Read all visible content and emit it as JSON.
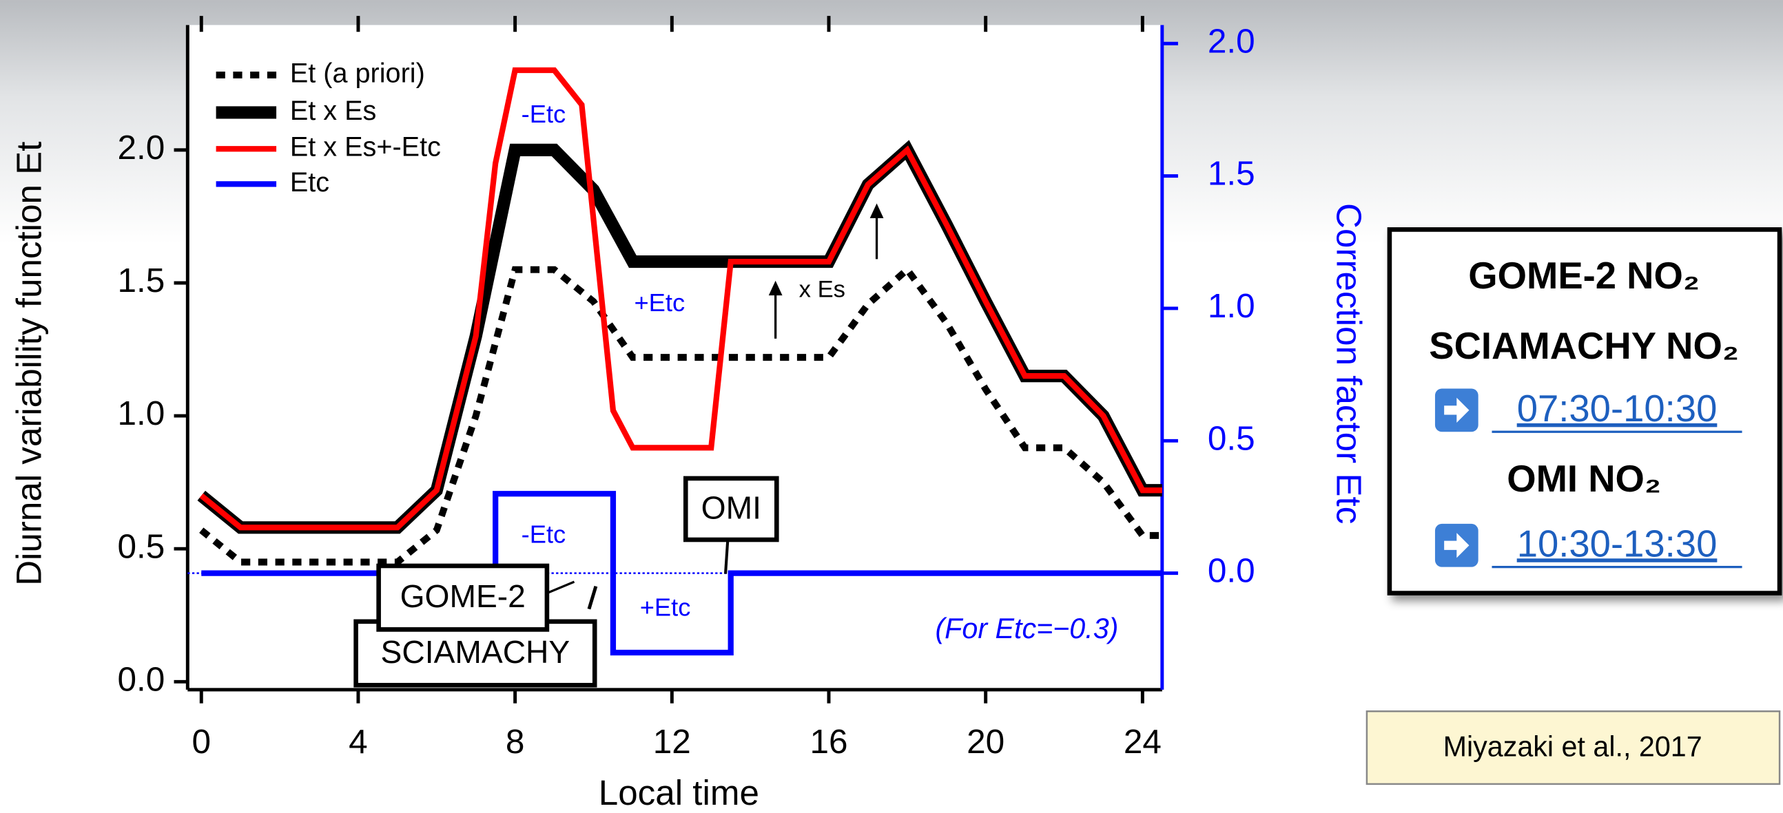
{
  "chart_data": {
    "type": "line",
    "x_label": "Local time",
    "y_label": "Diurnal variability function Et",
    "y2_label": "Correction factor Etc",
    "x": [
      0,
      1,
      2,
      3,
      4,
      5,
      6,
      7,
      8,
      9,
      10,
      11,
      12,
      13,
      14,
      15,
      16,
      17,
      18,
      19,
      20,
      21,
      22,
      23,
      24,
      24.5
    ],
    "series": [
      {
        "name": "Et (a priori)",
        "color": "#000000",
        "style": "dotted",
        "values": [
          0.57,
          0.45,
          0.45,
          0.45,
          0.45,
          0.45,
          0.57,
          1.0,
          1.55,
          1.55,
          1.43,
          1.22,
          1.22,
          1.22,
          1.22,
          1.22,
          1.22,
          1.42,
          1.55,
          1.35,
          1.1,
          0.88,
          0.88,
          0.75,
          0.55,
          0.55
        ]
      },
      {
        "name": "Et x Es",
        "color": "#000000",
        "style": "thick",
        "values": [
          0.7,
          0.58,
          0.58,
          0.58,
          0.58,
          0.58,
          0.72,
          1.3,
          2.0,
          2.0,
          1.85,
          1.58,
          1.58,
          1.58,
          1.58,
          1.58,
          1.58,
          1.87,
          2.0,
          1.72,
          1.43,
          1.15,
          1.15,
          1.0,
          0.72,
          0.72
        ]
      },
      {
        "name": "Et x Es+-Etc",
        "color": "#ff0000",
        "style": "solid",
        "x": [
          0,
          1,
          2,
          3,
          4,
          5,
          6,
          7,
          7.5,
          8,
          9,
          9.7,
          10.5,
          11,
          13,
          13.5,
          16,
          17,
          18,
          19,
          20,
          21,
          22,
          23,
          24,
          24.5
        ],
        "values": [
          0.7,
          0.58,
          0.58,
          0.58,
          0.58,
          0.58,
          0.72,
          1.3,
          1.95,
          2.3,
          2.3,
          2.17,
          1.02,
          0.88,
          0.88,
          1.58,
          1.58,
          1.87,
          2.0,
          1.72,
          1.43,
          1.15,
          1.15,
          1.0,
          0.72,
          0.72
        ]
      },
      {
        "name": "Etc",
        "color": "#0000ff",
        "style": "step",
        "axis": "y2",
        "x": [
          0,
          7.5,
          7.5,
          10.5,
          10.5,
          13.5,
          13.5,
          24.5
        ],
        "values": [
          0,
          0,
          0.3,
          0.3,
          -0.3,
          -0.3,
          0,
          0
        ]
      }
    ],
    "xlim": [
      -0.35,
      24.5
    ],
    "xticks": [
      0,
      4,
      8,
      12,
      16,
      20,
      24
    ],
    "ylim": [
      -0.03,
      2.47
    ],
    "yticks": [
      {
        "value": 0,
        "label": "0.0"
      },
      {
        "value": 0.5,
        "label": "0.5"
      },
      {
        "value": 1,
        "label": "1.0"
      },
      {
        "value": 1.5,
        "label": "1.5"
      },
      {
        "value": 2,
        "label": "2.0"
      }
    ],
    "y2lim": [
      -0.44,
      2.07
    ],
    "y2ticks": [
      {
        "value": 0,
        "label": "0.0"
      },
      {
        "value": 0.5,
        "label": "0.5"
      },
      {
        "value": 1,
        "label": "1.0"
      },
      {
        "value": 1.5,
        "label": "1.5"
      },
      {
        "value": 2,
        "label": "2.0"
      }
    ],
    "legend": "upper left",
    "annotations": [
      "-Etc",
      "+Etc",
      "x Es",
      "-Etc",
      "+Etc",
      "OMI",
      "GOME-2",
      "SCIAMACHY",
      "(For Etc=−0.3)"
    ]
  },
  "side_box": {
    "lines": [
      "GOME-2 NO₂",
      "SCIAMACHY NO₂",
      "07:30-10:30",
      "OMI NO₂",
      "10:30-13:30"
    ]
  },
  "citation": "Miyazaki et al., 2017"
}
